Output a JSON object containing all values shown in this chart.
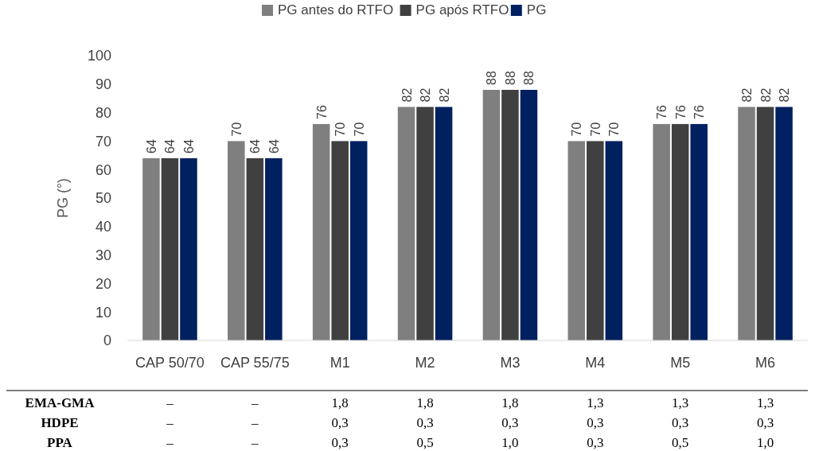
{
  "chart_data": {
    "type": "bar",
    "categories": [
      "CAP 50/70",
      "CAP 55/75",
      "M1",
      "M2",
      "M3",
      "M4",
      "M5",
      "M6"
    ],
    "series": [
      {
        "name": "PG antes do RTFO",
        "color": "#7f7f7f",
        "values": [
          64,
          70,
          76,
          82,
          88,
          70,
          76,
          82
        ]
      },
      {
        "name": "PG após RTFO",
        "color": "#404040",
        "values": [
          64,
          64,
          70,
          82,
          88,
          70,
          76,
          82
        ]
      },
      {
        "name": "PG",
        "color": "#002060",
        "values": [
          64,
          64,
          70,
          82,
          88,
          70,
          76,
          82
        ]
      }
    ],
    "ylabel": "PG (°)",
    "ylim": [
      0,
      100
    ],
    "yticks": [
      0,
      10,
      20,
      30,
      40,
      50,
      60,
      70,
      80,
      90,
      100
    ],
    "grid": false,
    "legend": "top",
    "data_labels": true,
    "annotations": [
      "EMA-GMA",
      "–",
      "–",
      "1,8",
      "1,8",
      "1,8",
      "1,3",
      "1,3",
      "1,3",
      "HDPE",
      "–",
      "–",
      "0,3",
      "0,3",
      "0,3",
      "0,3",
      "0,3",
      "0,3",
      "PPA",
      "–",
      "–",
      "0,3",
      "0,5",
      "1,0",
      "0,3",
      "0,5",
      "1,0"
    ]
  }
}
